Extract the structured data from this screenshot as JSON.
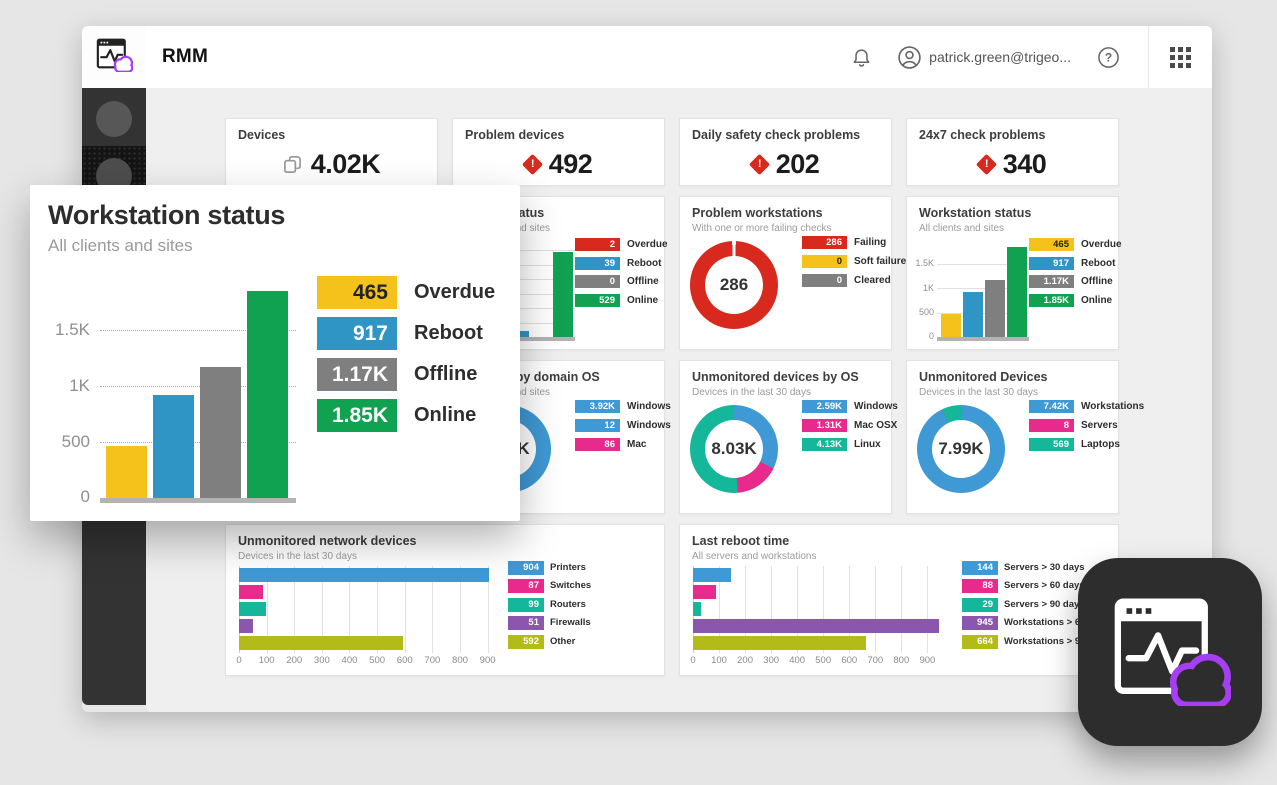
{
  "colors": {
    "yellow": "#F5C21B",
    "blue": "#2E95C5",
    "donut_blue": "#3F99D5",
    "gray": "#7F7F7F",
    "green": "#10A251",
    "red": "#D7291D",
    "pink": "#E92A8D",
    "teal": "#15B79B",
    "purple": "#8B57AE",
    "olive": "#B3BB18",
    "cloud_purple": "#A63FF2",
    "sidebar_bg": "#333333"
  },
  "topbar": {
    "app_name": "RMM",
    "user_email": "patrick.green@trigeo..."
  },
  "icons": {
    "logo": "app-window-with-pulse-and-cloud",
    "bell": "notifications-bell",
    "avatar": "user-avatar",
    "help": "question-mark-circle",
    "apps": "app-launcher-grid",
    "devices": "copy-pages",
    "alert": "red-diamond-exclamation"
  },
  "stat_cards": [
    {
      "title": "Devices",
      "value": "4.02K",
      "icon": "devices"
    },
    {
      "title": "Problem devices",
      "value": "492",
      "icon": "alert"
    },
    {
      "title": "Daily safety check problems",
      "value": "202",
      "icon": "alert"
    },
    {
      "title": "24x7 check problems",
      "value": "340",
      "icon": "alert"
    }
  ],
  "chart_data": [
    {
      "id": "workstation-status",
      "type": "bar",
      "title": "Workstation status",
      "subtitle": "All clients and sites",
      "categories": [
        "Overdue",
        "Reboot",
        "Offline",
        "Online"
      ],
      "values": [
        465,
        917,
        1170,
        1850
      ],
      "value_labels": [
        "465",
        "917",
        "1.17K",
        "1.85K"
      ],
      "colors": [
        "#F5C21B",
        "#2E95C5",
        "#7F7F7F",
        "#10A251"
      ],
      "ymax": 1850,
      "yticks": [
        {
          "label": "1.5K",
          "value": 1500
        },
        {
          "label": "1K",
          "value": 1000
        },
        {
          "label": "500",
          "value": 500
        },
        {
          "label": "0",
          "value": 0
        }
      ],
      "legend_position": "right"
    },
    {
      "id": "server-status",
      "type": "bar",
      "title": "Server status",
      "subtitle": "All clients and sites",
      "categories": [
        "Overdue",
        "Reboot",
        "Offline",
        "Online"
      ],
      "values": [
        2,
        39,
        0,
        529
      ],
      "value_labels": [
        "2",
        "39",
        "0",
        "529"
      ],
      "colors": [
        "#D7291D",
        "#2E95C5",
        "#7F7F7F",
        "#10A251"
      ],
      "ymax": 560,
      "yticks": [
        {
          "value": 90
        },
        {
          "value": 180
        },
        {
          "value": 270
        },
        {
          "value": 360
        },
        {
          "value": 450
        },
        {
          "value": 540
        }
      ],
      "legend_position": "right"
    },
    {
      "id": "problem-workstations",
      "type": "donut",
      "title": "Problem workstations",
      "subtitle": "With one or more failing checks",
      "center_label": "286",
      "notch": true,
      "segments": [
        {
          "label": "Failing",
          "value": 286,
          "display": "286",
          "color": "#D7291D"
        },
        {
          "label": "Soft failure",
          "value": 0,
          "display": "0",
          "color": "#F5C21B"
        },
        {
          "label": "Cleared",
          "value": 0,
          "display": "0",
          "color": "#7F7F7F"
        }
      ]
    },
    {
      "id": "devices-by-domain-os",
      "type": "donut",
      "title": "Devices by domain OS",
      "subtitle": "All clients and sites",
      "center_label": "4.02K",
      "segments": [
        {
          "label": "Windows",
          "value": 3920,
          "display": "3.92K",
          "color": "#3F99D5"
        },
        {
          "label": "Windows",
          "value": 12,
          "display": "12",
          "color": "#3F99D5"
        },
        {
          "label": "Mac",
          "value": 86,
          "display": "86",
          "color": "#E92A8D"
        }
      ]
    },
    {
      "id": "unmonitored-devices-by-os",
      "type": "donut",
      "title": "Unmonitored devices by OS",
      "subtitle": "Devices in the last 30 days",
      "center_label": "8.03K",
      "segments": [
        {
          "label": "Windows",
          "value": 2590,
          "display": "2.59K",
          "color": "#3F99D5"
        },
        {
          "label": "Mac OSX",
          "value": 1310,
          "display": "1.31K",
          "color": "#E92A8D"
        },
        {
          "label": "Linux",
          "value": 4130,
          "display": "4.13K",
          "color": "#15B79B"
        }
      ]
    },
    {
      "id": "unmonitored-devices",
      "type": "donut",
      "title": "Unmonitored Devices",
      "subtitle": "Devices in the last 30 days",
      "center_label": "7.99K",
      "segments": [
        {
          "label": "Workstations",
          "value": 7420,
          "display": "7.42K",
          "color": "#3F99D5"
        },
        {
          "label": "Servers",
          "value": 8,
          "display": "8",
          "color": "#E92A8D"
        },
        {
          "label": "Laptops",
          "value": 569,
          "display": "569",
          "color": "#15B79B"
        }
      ]
    },
    {
      "id": "unmonitored-network-devices",
      "type": "hbar",
      "title": "Unmonitored network devices",
      "subtitle": "Devices in the last 30 days",
      "categories": [
        "Printers",
        "Switches",
        "Routers",
        "Firewalls",
        "Other"
      ],
      "values": [
        904,
        87,
        99,
        51,
        592
      ],
      "value_labels": [
        "904",
        "87",
        "99",
        "51",
        "592"
      ],
      "colors": [
        "#3F99D5",
        "#E92A8D",
        "#15B79B",
        "#8B57AE",
        "#B3BB18"
      ],
      "xmax": 905,
      "xticks": [
        0,
        100,
        200,
        300,
        400,
        500,
        600,
        700,
        800,
        900
      ]
    },
    {
      "id": "last-reboot-time",
      "type": "hbar",
      "title": "Last reboot time",
      "subtitle": "All servers and workstations",
      "categories": [
        "Servers > 30 days",
        "Servers > 60 days",
        "Servers > 90 days",
        "Workstations > 60 days",
        "Workstations > 90 days"
      ],
      "values": [
        144,
        88,
        29,
        945,
        664
      ],
      "value_labels": [
        "144",
        "88",
        "29",
        "945",
        "664"
      ],
      "colors": [
        "#3F99D5",
        "#E92A8D",
        "#15B79B",
        "#8B57AE",
        "#B3BB18"
      ],
      "xmax": 960,
      "xticks": [
        0,
        100,
        200,
        300,
        400,
        500,
        600,
        700,
        800,
        900
      ]
    }
  ]
}
